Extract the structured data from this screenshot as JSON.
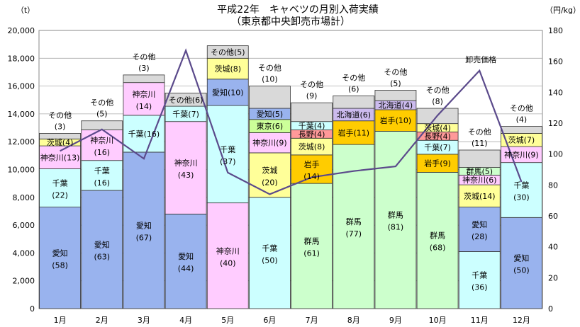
{
  "chart_data": {
    "type": "bar",
    "stacked": true,
    "title": "平成22年　キャベツの月別入荷実績",
    "subtitle": "（東京都中央卸売市場計）",
    "ylabel_left": "（t）",
    "ylabel_right": "（円/kg）",
    "ylim_left": [
      0,
      20000
    ],
    "ylim_right": [
      0,
      180
    ],
    "yticks_left": [
      "0",
      "2,000",
      "4,000",
      "6,000",
      "8,000",
      "10,000",
      "12,000",
      "14,000",
      "16,000",
      "18,000",
      "20,000"
    ],
    "yticks_right": [
      "0",
      "20",
      "40",
      "60",
      "80",
      "100",
      "120",
      "140",
      "160",
      "180"
    ],
    "grid": true,
    "categories": [
      "1月",
      "2月",
      "3月",
      "4月",
      "5月",
      "6月",
      "7月",
      "8月",
      "9月",
      "10月",
      "11月",
      "12月"
    ],
    "colors": {
      "愛知": "#99b3ee",
      "千葉": "#ccffff",
      "神奈川": "#ffccff",
      "茨城": "#ffff99",
      "群馬": "#ccffcc",
      "東京": "#ccff99",
      "長野": "#ff9999",
      "岩手": "#ffcc00",
      "北海道": "#ccbbee",
      "その他": "#d9d9d9"
    },
    "bars": [
      {
        "total": 12600,
        "segments": [
          {
            "name": "愛知",
            "value": 7300,
            "label": "愛知",
            "pct": "(58)"
          },
          {
            "name": "千葉",
            "value": 2750,
            "label": "千葉",
            "pct": "(22)"
          },
          {
            "name": "神奈川",
            "value": 1650,
            "label": "神奈川(13)",
            "pct": ""
          },
          {
            "name": "茨城",
            "value": 500,
            "label": "茨城(4)",
            "pct": ""
          },
          {
            "name": "その他",
            "value": 400,
            "label": "",
            "pct": ""
          }
        ],
        "above": [
          "その他",
          "(3)"
        ]
      },
      {
        "total": 13500,
        "segments": [
          {
            "name": "愛知",
            "value": 8500,
            "label": "愛知",
            "pct": "(63)"
          },
          {
            "name": "千葉",
            "value": 2150,
            "label": "千葉",
            "pct": "(16)"
          },
          {
            "name": "神奈川",
            "value": 2200,
            "label": "神奈川",
            "pct": "(16)"
          },
          {
            "name": "その他",
            "value": 650,
            "label": "",
            "pct": ""
          }
        ],
        "above": [
          "その他",
          "(5)"
        ]
      },
      {
        "total": 16800,
        "segments": [
          {
            "name": "愛知",
            "value": 11250,
            "label": "愛知",
            "pct": "(67)"
          },
          {
            "name": "千葉",
            "value": 2650,
            "label": "千葉(16)",
            "pct": ""
          },
          {
            "name": "神奈川",
            "value": 2350,
            "label": "神奈川",
            "pct": "(14)"
          },
          {
            "name": "その他",
            "value": 550,
            "label": "",
            "pct": ""
          }
        ],
        "above": [
          "その他",
          "(3)"
        ]
      },
      {
        "total": 15500,
        "segments": [
          {
            "name": "愛知",
            "value": 6800,
            "label": "愛知",
            "pct": "(44)"
          },
          {
            "name": "神奈川",
            "value": 6650,
            "label": "神奈川",
            "pct": "(43)"
          },
          {
            "name": "千葉",
            "value": 1100,
            "label": "千葉(7)",
            "pct": ""
          },
          {
            "name": "その他",
            "value": 950,
            "label": "その他(6)",
            "pct": ""
          }
        ],
        "above": []
      },
      {
        "total": 18900,
        "segments": [
          {
            "name": "神奈川",
            "value": 7600,
            "label": "神奈川",
            "pct": "(40)"
          },
          {
            "name": "千葉",
            "value": 7000,
            "label": "千葉",
            "pct": "(37)"
          },
          {
            "name": "愛知",
            "value": 1900,
            "label": "愛知(10)",
            "pct": ""
          },
          {
            "name": "茨城",
            "value": 1500,
            "label": "茨城(8)",
            "pct": ""
          },
          {
            "name": "その他",
            "value": 900,
            "label": "その他(5)",
            "pct": ""
          }
        ],
        "above": []
      },
      {
        "total": 16000,
        "segments": [
          {
            "name": "千葉",
            "value": 8000,
            "label": "千葉",
            "pct": "(50)"
          },
          {
            "name": "茨城",
            "value": 3200,
            "label": "茨城",
            "pct": "(20)"
          },
          {
            "name": "神奈川",
            "value": 1450,
            "label": "神奈川(9)",
            "pct": ""
          },
          {
            "name": "東京",
            "value": 950,
            "label": "東京(6)",
            "pct": ""
          },
          {
            "name": "愛知",
            "value": 800,
            "label": "愛知(5)",
            "pct": ""
          },
          {
            "name": "その他",
            "value": 1600,
            "label": "",
            "pct": ""
          }
        ],
        "above": [
          "その他",
          "(10)"
        ]
      },
      {
        "total": 14800,
        "segments": [
          {
            "name": "群馬",
            "value": 9000,
            "label": "群馬",
            "pct": "(61)"
          },
          {
            "name": "岩手",
            "value": 2050,
            "label": "岩手",
            "pct": "(14)"
          },
          {
            "name": "茨城",
            "value": 1200,
            "label": "茨城(8)",
            "pct": ""
          },
          {
            "name": "長野",
            "value": 600,
            "label": "長野(4)",
            "pct": ""
          },
          {
            "name": "千葉",
            "value": 600,
            "label": "千葉(4)",
            "pct": ""
          },
          {
            "name": "その他",
            "value": 1350,
            "label": "",
            "pct": ""
          }
        ],
        "above": [
          "その他",
          "(9)"
        ]
      },
      {
        "total": 15300,
        "segments": [
          {
            "name": "群馬",
            "value": 11800,
            "label": "群馬",
            "pct": "(77)"
          },
          {
            "name": "岩手",
            "value": 1700,
            "label": "岩手(11)",
            "pct": ""
          },
          {
            "name": "北海道",
            "value": 900,
            "label": "北海道(6)",
            "pct": ""
          },
          {
            "name": "その他",
            "value": 900,
            "label": "",
            "pct": ""
          }
        ],
        "above": [
          "その他",
          "(6)"
        ]
      },
      {
        "total": 15700,
        "segments": [
          {
            "name": "群馬",
            "value": 12750,
            "label": "群馬",
            "pct": "(81)"
          },
          {
            "name": "岩手",
            "value": 1550,
            "label": "岩手(10)",
            "pct": ""
          },
          {
            "name": "北海道",
            "value": 650,
            "label": "北海道(4)",
            "pct": ""
          },
          {
            "name": "その他",
            "value": 750,
            "label": "",
            "pct": ""
          }
        ],
        "above": [
          "その他",
          "(5)"
        ]
      },
      {
        "total": 14400,
        "segments": [
          {
            "name": "群馬",
            "value": 9800,
            "label": "群馬",
            "pct": "(68)"
          },
          {
            "name": "岩手",
            "value": 1300,
            "label": "岩手(9)",
            "pct": ""
          },
          {
            "name": "千葉",
            "value": 1000,
            "label": "千葉(7)",
            "pct": ""
          },
          {
            "name": "長野",
            "value": 600,
            "label": "長野(4)",
            "pct": ""
          },
          {
            "name": "茨城",
            "value": 600,
            "label": "茨城(4)",
            "pct": ""
          },
          {
            "name": "その他",
            "value": 1100,
            "label": "",
            "pct": ""
          }
        ],
        "above": [
          "その他",
          "(8)"
        ]
      },
      {
        "total": 11400,
        "segments": [
          {
            "name": "千葉",
            "value": 4100,
            "label": "千葉",
            "pct": "(36)"
          },
          {
            "name": "愛知",
            "value": 3200,
            "label": "愛知",
            "pct": "(28)"
          },
          {
            "name": "茨城",
            "value": 1600,
            "label": "茨城(14)",
            "pct": ""
          },
          {
            "name": "神奈川",
            "value": 700,
            "label": "神奈川(6)",
            "pct": ""
          },
          {
            "name": "群馬",
            "value": 550,
            "label": "群馬(5)",
            "pct": ""
          },
          {
            "name": "その他",
            "value": 1250,
            "label": "",
            "pct": ""
          }
        ],
        "above": [
          "その他",
          "(11)"
        ]
      },
      {
        "total": 13100,
        "segments": [
          {
            "name": "愛知",
            "value": 6550,
            "label": "愛知",
            "pct": "(50)"
          },
          {
            "name": "千葉",
            "value": 3950,
            "label": "千葉",
            "pct": "(30)"
          },
          {
            "name": "神奈川",
            "value": 1150,
            "label": "神奈川(9)",
            "pct": ""
          },
          {
            "name": "茨城",
            "value": 950,
            "label": "茨城(7)",
            "pct": ""
          },
          {
            "name": "その他",
            "value": 500,
            "label": "",
            "pct": ""
          }
        ],
        "above": [
          "その他",
          "(4)"
        ]
      }
    ],
    "price_line": {
      "name": "卸売価格",
      "values": [
        102,
        116,
        97,
        167,
        88,
        74,
        85,
        89,
        92,
        125,
        154,
        82
      ]
    }
  }
}
